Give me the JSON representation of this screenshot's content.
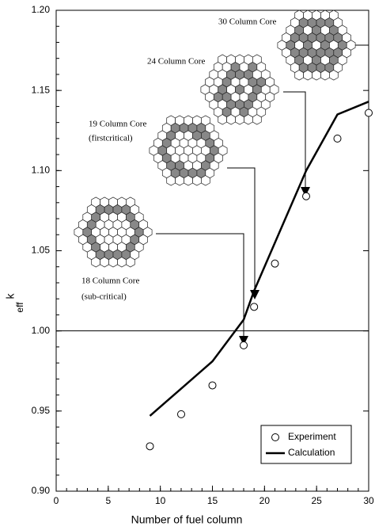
{
  "chart_data": {
    "type": "scatter-line",
    "x_label": "Number of fuel column",
    "y_label": "k",
    "y_label_sub": "eff",
    "x": [
      9,
      12,
      15,
      18,
      19,
      21,
      24,
      27,
      30
    ],
    "series": [
      {
        "name": "Experiment",
        "color": "#000000",
        "values": [
          0.928,
          0.948,
          0.966,
          0.991,
          1.015,
          1.042,
          1.084,
          1.12,
          1.136
        ]
      },
      {
        "name": "Calculation",
        "color": "#000000",
        "values": [
          0.947,
          0.964,
          0.981,
          1.007,
          1.025,
          1.055,
          1.1,
          1.135,
          1.143
        ]
      }
    ],
    "xlim": [
      0,
      30
    ],
    "xticks": [
      0,
      5,
      10,
      15,
      20,
      25,
      30
    ],
    "ylim": [
      0.9,
      1.2
    ],
    "yticks": [
      {
        "value": 0.9,
        "label": "0.90"
      },
      0.95,
      {
        "value": 1.0,
        "label": "1.00"
      },
      1.05,
      {
        "value": 1.1,
        "label": "1.10"
      },
      1.15,
      {
        "value": 1.2,
        "label": "1.20"
      }
    ],
    "hline": 1.0,
    "legend": "lower right",
    "annotations": [
      "30 Column Core",
      "24 Column Core",
      "19 Column Core",
      "(firstcritical)",
      "18 Column Core",
      "(sub-critical)"
    ]
  }
}
